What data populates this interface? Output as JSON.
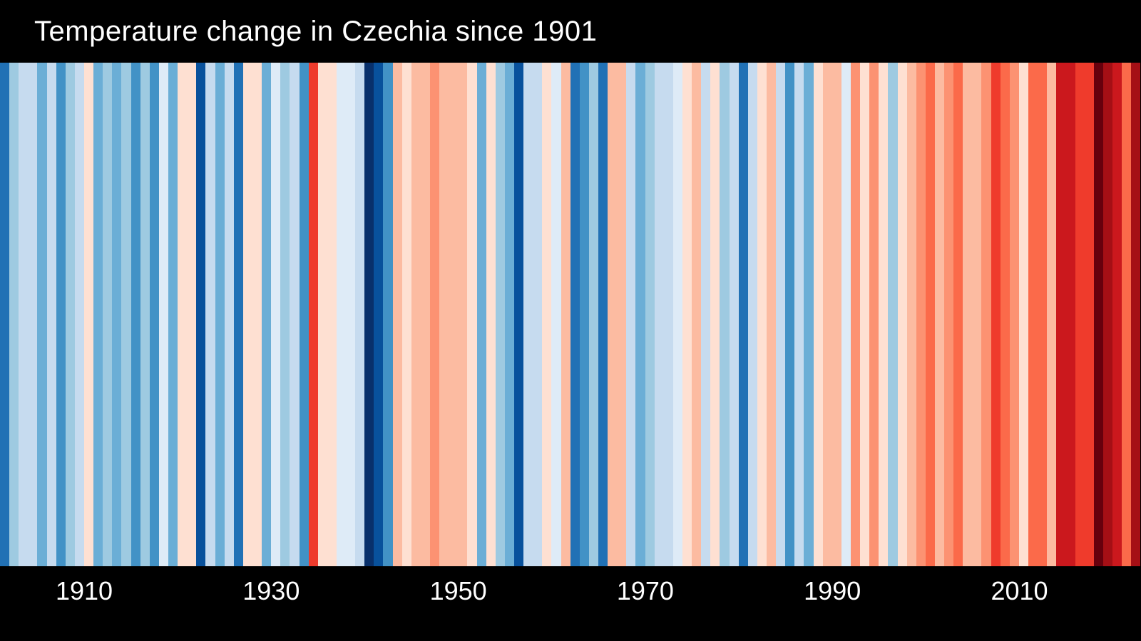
{
  "chart_data": {
    "type": "heatmap",
    "variant": "warming-stripes",
    "title": "Temperature change in Czechia since 1901",
    "background_color": "#000000",
    "text_color": "#ffffff",
    "start_year": 1901,
    "end_year": 2022,
    "x_tick_labels": [
      "1910",
      "1930",
      "1950",
      "1970",
      "1990",
      "2010"
    ],
    "x_ticks": [
      1910,
      1930,
      1950,
      1970,
      1990,
      2010
    ],
    "legend_position": "none",
    "grid": false,
    "palette": {
      "cold_to_warm": [
        "#08306b",
        "#08519c",
        "#2171b5",
        "#4292c6",
        "#6baed6",
        "#9ecae1",
        "#c6dbef",
        "#deebf7",
        "#fee0d2",
        "#fcbba1",
        "#fc9272",
        "#fb6a4a",
        "#ef3b2c",
        "#cb181d",
        "#a50f15",
        "#67000d"
      ]
    },
    "colors": [
      "#2171b5",
      "#9ecae1",
      "#c6dbef",
      "#c6dbef",
      "#6baed6",
      "#c6dbef",
      "#4292c6",
      "#9ecae1",
      "#c6dbef",
      "#fee0d2",
      "#6baed6",
      "#9ecae1",
      "#6baed6",
      "#9ecae1",
      "#4292c6",
      "#9ecae1",
      "#4292c6",
      "#deebf7",
      "#6baed6",
      "#fee0d2",
      "#fee0d2",
      "#08519c",
      "#c6dbef",
      "#6baed6",
      "#c6dbef",
      "#2171b5",
      "#fee0d2",
      "#fee0d2",
      "#6baed6",
      "#deebf7",
      "#9ecae1",
      "#c6dbef",
      "#4292c6",
      "#ef3b2c",
      "#fee0d2",
      "#fee0d2",
      "#deebf7",
      "#deebf7",
      "#c6dbef",
      "#08306b",
      "#08519c",
      "#4292c6",
      "#fcbba1",
      "#fee0d2",
      "#fcbba1",
      "#fcbba1",
      "#fc9272",
      "#fcbba1",
      "#fcbba1",
      "#fcbba1",
      "#fee0d2",
      "#6baed6",
      "#fee0d2",
      "#9ecae1",
      "#6baed6",
      "#08519c",
      "#c6dbef",
      "#c6dbef",
      "#fee0d2",
      "#deebf7",
      "#fcbba1",
      "#2171b5",
      "#4292c6",
      "#9ecae1",
      "#2171b5",
      "#fcbba1",
      "#fcbba1",
      "#c6dbef",
      "#6baed6",
      "#9ecae1",
      "#c6dbef",
      "#c6dbef",
      "#deebf7",
      "#fee0d2",
      "#fcbba1",
      "#c6dbef",
      "#fee0d2",
      "#9ecae1",
      "#c6dbef",
      "#2171b5",
      "#c6dbef",
      "#fee0d2",
      "#fcbba1",
      "#c6dbef",
      "#4292c6",
      "#c6dbef",
      "#6baed6",
      "#fee0d2",
      "#fcbba1",
      "#fcbba1",
      "#deebf7",
      "#fc9272",
      "#fee0d2",
      "#fc9272",
      "#fee0d2",
      "#9ecae1",
      "#fee0d2",
      "#fcbba1",
      "#fc9272",
      "#fb6a4a",
      "#fcbba1",
      "#fc9272",
      "#fb6a4a",
      "#fcbba1",
      "#fcbba1",
      "#fc9272",
      "#ef3b2c",
      "#fb6a4a",
      "#fc9272",
      "#fee0d2",
      "#fb6a4a",
      "#fb6a4a",
      "#fcbba1",
      "#cb181d",
      "#cb181d",
      "#ef3b2c",
      "#ef3b2c",
      "#67000d",
      "#a50f15",
      "#cb181d",
      "#fb6a4a",
      "#a50f15"
    ]
  }
}
